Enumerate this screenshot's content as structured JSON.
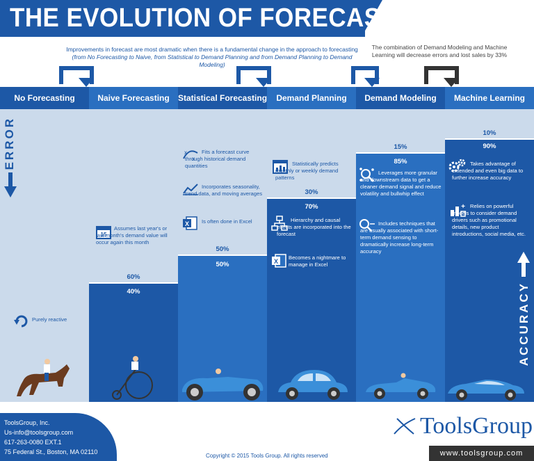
{
  "title": "THE EVOLUTION OF FORECASTING",
  "intro": {
    "line1": "Improvements in forecast are most dramatic when there is a fundamental change in the approach to forecasting",
    "line2": "(from No Forecasting to Naive, from Statistical to Demand Planning and from Demand Planning to Demand Modeling)"
  },
  "combo_note": "The combination of Demand Modeling and Machine Learning will decrease errors and lost sales by 33%",
  "side_labels": {
    "error": "ERROR",
    "accuracy": "ACCURACY"
  },
  "stages": [
    {
      "name": "No Forecasting",
      "error_pct": null,
      "accuracy_pct": null,
      "error_fraction": 1.0,
      "notes": [
        {
          "icon": "circular-arrow-icon",
          "text": "Purely reactive"
        }
      ]
    },
    {
      "name": "Naive Forecasting",
      "error_pct": "60%",
      "accuracy_pct": "40%",
      "error_fraction": 0.6,
      "notes": [
        {
          "icon": "calendar-icon",
          "text": "Assumes last year's or last month's demand value will occur again this month"
        }
      ]
    },
    {
      "name": "Statistical Forecasting",
      "error_pct": "50%",
      "accuracy_pct": "50%",
      "error_fraction": 0.5,
      "notes": [
        {
          "icon": "curve-fit-icon",
          "text": "Fits a forecast curve through historical demand quantities"
        },
        {
          "icon": "trend-chart-icon",
          "text": "Incorporates seasonality, trend data, and moving averages"
        },
        {
          "icon": "excel-icon",
          "text": "Is often done in Excel"
        }
      ]
    },
    {
      "name": "Demand Planning",
      "error_pct": "30%",
      "accuracy_pct": "70%",
      "error_fraction": 0.3,
      "notes": [
        {
          "icon": "calendar-chart-icon",
          "text": "Statistically predicts monthly or weekly demand patterns"
        },
        {
          "icon": "hierarchy-icon",
          "text": "Hierarchy and causal effects are incorporated into the forecast"
        },
        {
          "icon": "excel-icon",
          "text": "Becomes a nightmare to manage in Excel"
        }
      ]
    },
    {
      "name": "Demand Modeling",
      "error_pct": "15%",
      "accuracy_pct": "85%",
      "error_fraction": 0.15,
      "notes": [
        {
          "icon": "network-search-icon",
          "text": "Leverages more granular and downstream data to get a cleaner demand signal and reduce volatility and bullwhip effect"
        },
        {
          "icon": "magnifier-icon",
          "text": "Includes techniques that are usually associated with short-term demand sensing to dramatically increase long-term accuracy"
        }
      ]
    },
    {
      "name": "Machine Learning",
      "error_pct": "10%",
      "accuracy_pct": "90%",
      "error_fraction": 0.1,
      "notes": [
        {
          "icon": "gears-icon",
          "text": "Takes advantage of extended and even big data to further increase accuracy"
        },
        {
          "icon": "model-drivers-icon",
          "text": "Relies on powerful models to consider demand drivers such as promotional details, new product introductions, social media, etc."
        }
      ]
    }
  ],
  "footer": {
    "company": "ToolsGroup, Inc.",
    "email": "Us-info@toolsgroup.com",
    "phone": "617-263-0080 EXT.1",
    "address": "75 Federal St., Boston, MA 02110",
    "copyright": "Copyright © 2015 Tools Group. All rights reserved",
    "website": "www.toolsgroup.com",
    "logo": "ToolsGroup"
  },
  "colors": {
    "dark_blue": "#1d58a6",
    "mid_blue": "#2a6fc0",
    "light_blue": "#cbdaeb"
  }
}
